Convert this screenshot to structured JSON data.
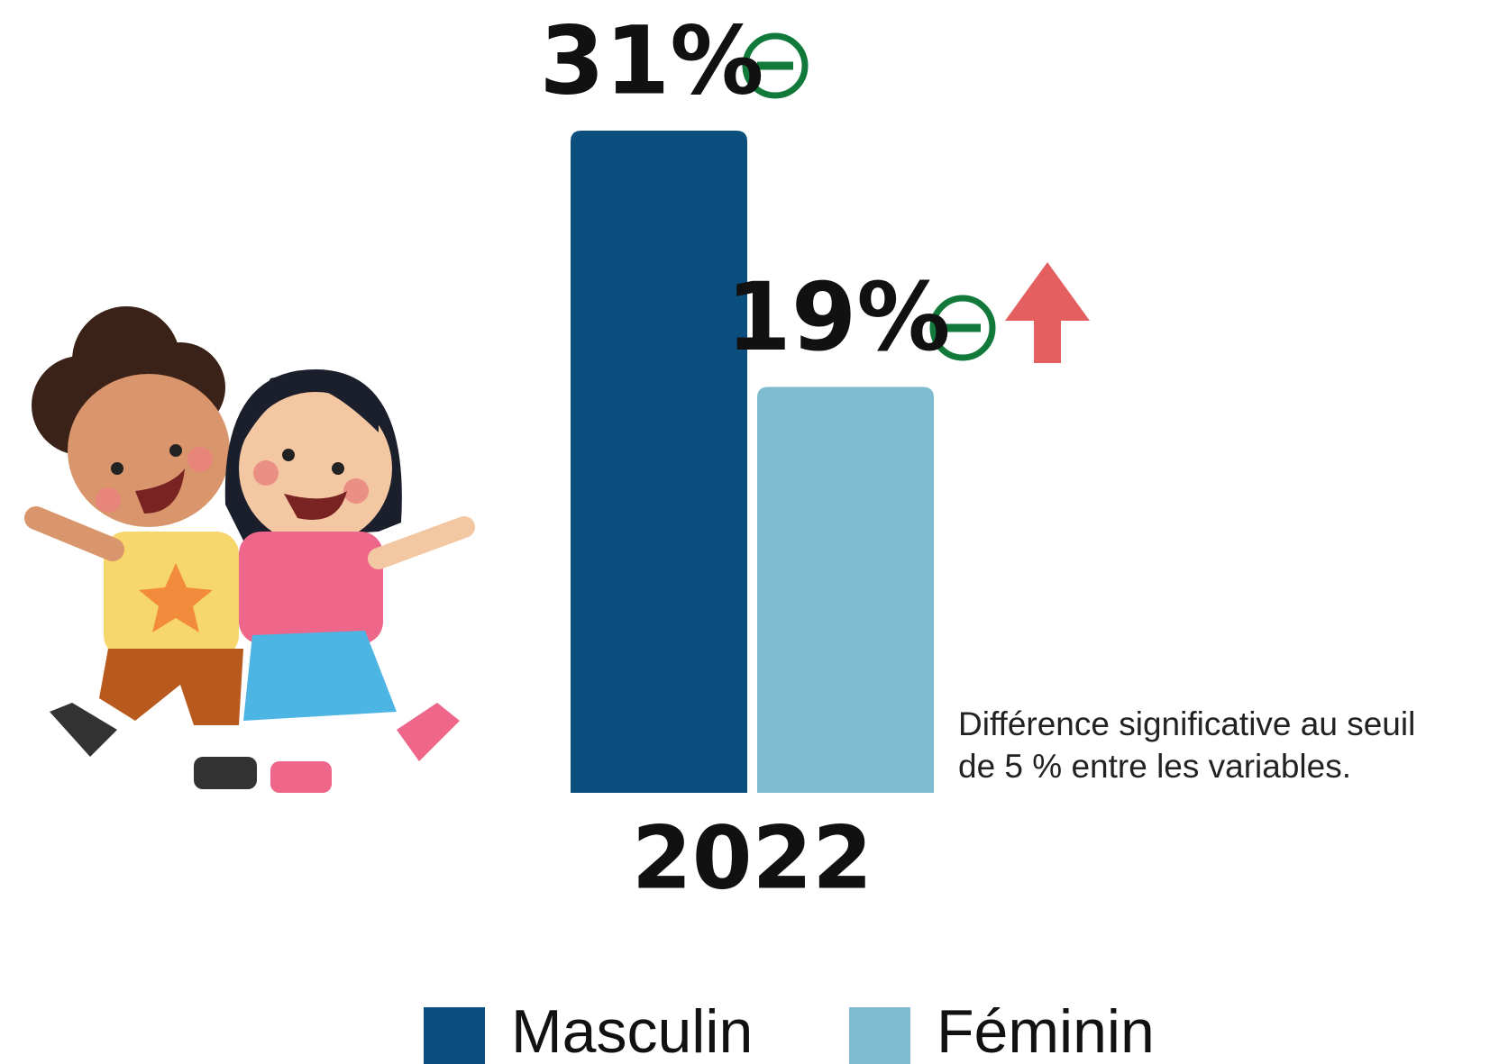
{
  "chart_data": {
    "type": "bar",
    "categories": [
      "2022"
    ],
    "series": [
      {
        "name": "Masculin",
        "color": "#0a4f7e",
        "values": [
          31
        ],
        "value_labels": [
          "31%"
        ]
      },
      {
        "name": "Féminin",
        "color": "#7fbbcf",
        "values": [
          19
        ],
        "value_labels": [
          "19%"
        ]
      }
    ],
    "annotation": [
      "Différence significative au seuil",
      "de 5 % entre les variables."
    ]
  }
}
